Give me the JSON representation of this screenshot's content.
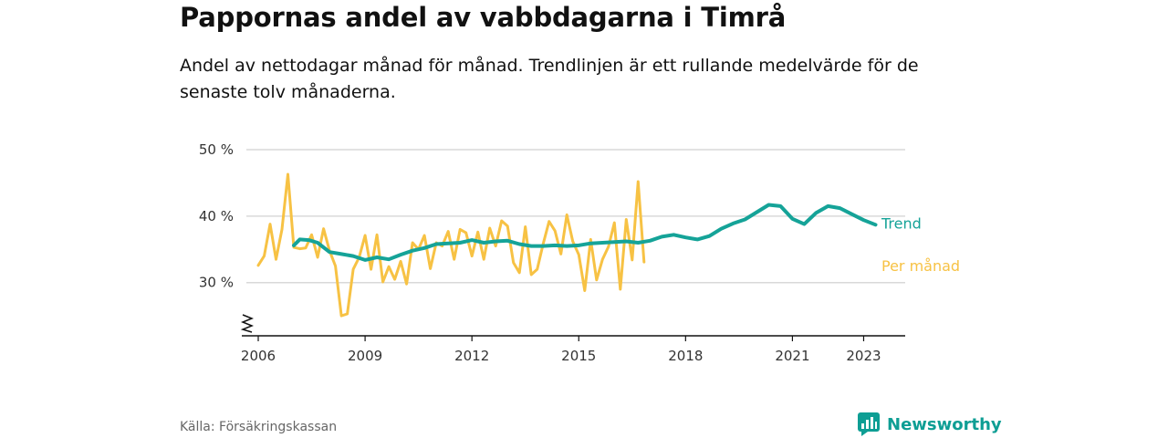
{
  "title": "Pappornas andel av vabbdagarna i Timrå",
  "subtitle": "Andel av nettodagar månad för månad. Trendlinjen är ett rullande medelvärde för de senaste tolv månaderna.",
  "source": "Källa: Försäkringskassan",
  "brand": {
    "name": "Newsworthy",
    "icon": "newsworthy-logo-icon",
    "color": "#0e9e94"
  },
  "chart_data": {
    "type": "line",
    "title": "Pappornas andel av vabbdagarna i Timrå",
    "xlabel": "",
    "ylabel": "",
    "y_unit": "%",
    "ylim": [
      22,
      50
    ],
    "y_axis_break": true,
    "yticks": [
      30,
      40,
      50
    ],
    "ytick_labels": [
      "30 %",
      "40 %",
      "50 %"
    ],
    "xlim": [
      "2005-09",
      "2024-03"
    ],
    "xticks": [
      "2006-01",
      "2009-01",
      "2012-01",
      "2015-01",
      "2018-01",
      "2021-01",
      "2023-01"
    ],
    "xtick_labels": [
      "2006",
      "2009",
      "2012",
      "2015",
      "2018",
      "2021",
      "2023"
    ],
    "grid": true,
    "legend": "direct labels at line ends",
    "series": [
      {
        "name": "Per månad",
        "color": "#f7c244",
        "data": [
          [
            "2006-01",
            32.6
          ],
          [
            "2006-03",
            34.0
          ],
          [
            "2006-05",
            38.8
          ],
          [
            "2006-07",
            33.5
          ],
          [
            "2006-09",
            38.0
          ],
          [
            "2006-11",
            46.3
          ],
          [
            "2007-01",
            35.3
          ],
          [
            "2007-03",
            35.1
          ],
          [
            "2007-05",
            35.2
          ],
          [
            "2007-07",
            37.2
          ],
          [
            "2007-09",
            33.8
          ],
          [
            "2007-11",
            38.1
          ],
          [
            "2008-01",
            34.8
          ],
          [
            "2008-03",
            32.5
          ],
          [
            "2008-05",
            25.0
          ],
          [
            "2008-07",
            25.3
          ],
          [
            "2008-09",
            32.0
          ],
          [
            "2008-11",
            33.8
          ],
          [
            "2009-01",
            37.1
          ],
          [
            "2009-03",
            32.0
          ],
          [
            "2009-05",
            37.2
          ],
          [
            "2009-07",
            30.1
          ],
          [
            "2009-09",
            32.4
          ],
          [
            "2009-11",
            30.5
          ],
          [
            "2010-01",
            33.2
          ],
          [
            "2010-03",
            29.8
          ],
          [
            "2010-05",
            36.0
          ],
          [
            "2010-07",
            35.0
          ],
          [
            "2010-09",
            37.1
          ],
          [
            "2010-11",
            32.1
          ],
          [
            "2011-01",
            36.0
          ],
          [
            "2011-03",
            35.5
          ],
          [
            "2011-05",
            37.7
          ],
          [
            "2011-07",
            33.5
          ],
          [
            "2011-09",
            38.0
          ],
          [
            "2011-11",
            37.5
          ],
          [
            "2012-01",
            34.0
          ],
          [
            "2012-03",
            37.6
          ],
          [
            "2012-05",
            33.5
          ],
          [
            "2012-07",
            38.2
          ],
          [
            "2012-09",
            35.5
          ],
          [
            "2012-11",
            39.3
          ],
          [
            "2013-01",
            38.5
          ],
          [
            "2013-03",
            33.0
          ],
          [
            "2013-05",
            31.5
          ],
          [
            "2013-07",
            38.4
          ],
          [
            "2013-09",
            31.2
          ],
          [
            "2013-11",
            32.0
          ],
          [
            "2014-01",
            35.8
          ],
          [
            "2014-03",
            39.2
          ],
          [
            "2014-05",
            37.8
          ],
          [
            "2014-07",
            34.3
          ],
          [
            "2014-09",
            40.2
          ],
          [
            "2014-11",
            36.2
          ],
          [
            "2015-01",
            34.2
          ],
          [
            "2015-03",
            28.8
          ],
          [
            "2015-05",
            36.5
          ],
          [
            "2015-07",
            30.4
          ],
          [
            "2015-09",
            33.5
          ],
          [
            "2015-11",
            35.4
          ],
          [
            "2016-01",
            39.0
          ],
          [
            "2016-03",
            29.0
          ],
          [
            "2016-05",
            39.5
          ],
          [
            "2016-07",
            33.4
          ],
          [
            "2016-09",
            45.2
          ],
          [
            "2016-11",
            33.1
          ]
        ]
      },
      {
        "name": "Trend",
        "color": "#15a398",
        "data": [
          [
            "2007-01",
            35.6
          ],
          [
            "2007-03",
            36.5
          ],
          [
            "2007-06",
            36.4
          ],
          [
            "2007-09",
            36.0
          ],
          [
            "2008-01",
            34.6
          ],
          [
            "2008-05",
            34.3
          ],
          [
            "2008-09",
            34.0
          ],
          [
            "2009-01",
            33.4
          ],
          [
            "2009-05",
            33.8
          ],
          [
            "2009-09",
            33.5
          ],
          [
            "2010-01",
            34.2
          ],
          [
            "2010-05",
            34.8
          ],
          [
            "2010-09",
            35.2
          ],
          [
            "2011-01",
            35.8
          ],
          [
            "2011-05",
            35.9
          ],
          [
            "2011-09",
            36.0
          ],
          [
            "2012-01",
            36.4
          ],
          [
            "2012-05",
            36.0
          ],
          [
            "2012-09",
            36.2
          ],
          [
            "2013-01",
            36.3
          ],
          [
            "2013-05",
            35.8
          ],
          [
            "2013-09",
            35.5
          ],
          [
            "2014-01",
            35.5
          ],
          [
            "2014-05",
            35.6
          ],
          [
            "2014-09",
            35.5
          ],
          [
            "2015-01",
            35.6
          ],
          [
            "2015-05",
            35.9
          ],
          [
            "2015-09",
            36.0
          ],
          [
            "2016-01",
            36.1
          ],
          [
            "2016-05",
            36.2
          ],
          [
            "2016-09",
            36.0
          ],
          [
            "2017-01",
            36.3
          ],
          [
            "2017-05",
            36.9
          ],
          [
            "2017-09",
            37.2
          ],
          [
            "2018-01",
            36.8
          ],
          [
            "2018-05",
            36.5
          ],
          [
            "2018-09",
            37.0
          ],
          [
            "2019-01",
            38.1
          ],
          [
            "2019-05",
            38.9
          ],
          [
            "2019-09",
            39.5
          ],
          [
            "2020-01",
            40.6
          ],
          [
            "2020-05",
            41.7
          ],
          [
            "2020-09",
            41.5
          ],
          [
            "2021-01",
            39.6
          ],
          [
            "2021-05",
            38.8
          ],
          [
            "2021-09",
            40.5
          ],
          [
            "2022-01",
            41.5
          ],
          [
            "2022-05",
            41.2
          ],
          [
            "2022-09",
            40.3
          ],
          [
            "2023-01",
            39.4
          ],
          [
            "2023-05",
            38.7
          ]
        ]
      }
    ]
  }
}
